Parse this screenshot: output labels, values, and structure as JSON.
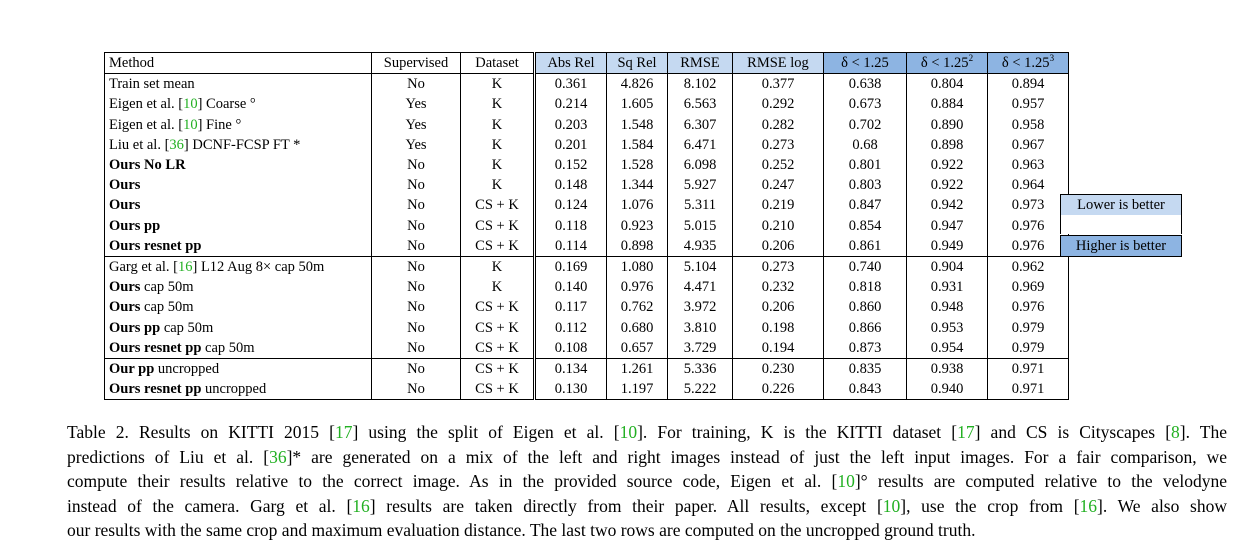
{
  "table": {
    "headers": {
      "method": "Method",
      "supervised": "Supervised",
      "dataset": "Dataset",
      "abs_rel": "Abs Rel",
      "sq_rel": "Sq Rel",
      "rmse": "RMSE",
      "rmse_log": "RMSE log",
      "d1": "δ < 1.25",
      "d2_base": "δ < 1.25",
      "d2_sup": "2",
      "d3_base": "δ < 1.25",
      "d3_sup": "3"
    },
    "rows": [
      {
        "method": "Train set mean",
        "cite": "",
        "method_rest": "",
        "bold_method": false,
        "sup": "No",
        "ds": "K",
        "vals": [
          "0.361",
          "4.826",
          "8.102",
          "0.377",
          "0.638",
          "0.804",
          "0.894"
        ],
        "bold": []
      },
      {
        "method": "Eigen et al. [",
        "cite": "10",
        "method_rest": "] Coarse °",
        "bold_method": false,
        "sup": "Yes",
        "ds": "K",
        "vals": [
          "0.214",
          "1.605",
          "6.563",
          "0.292",
          "0.673",
          "0.884",
          "0.957"
        ],
        "bold": []
      },
      {
        "method": "Eigen et al. [",
        "cite": "10",
        "method_rest": "] Fine °",
        "bold_method": false,
        "sup": "Yes",
        "ds": "K",
        "vals": [
          "0.203",
          "1.548",
          "6.307",
          "0.282",
          "0.702",
          "0.890",
          "0.958"
        ],
        "bold": []
      },
      {
        "method": "Liu et al. [",
        "cite": "36",
        "method_rest": "] DCNF-FCSP FT *",
        "bold_method": false,
        "sup": "Yes",
        "ds": "K",
        "vals": [
          "0.201",
          "1.584",
          "6.471",
          "0.273",
          "0.68",
          "0.898",
          "0.967"
        ],
        "bold": []
      },
      {
        "method": "Ours No LR",
        "cite": "",
        "method_rest": "",
        "bold_method": true,
        "sup": "No",
        "ds": "K",
        "vals": [
          "0.152",
          "1.528",
          "6.098",
          "0.252",
          "0.801",
          "0.922",
          "0.963"
        ],
        "bold": []
      },
      {
        "method": "Ours",
        "cite": "",
        "method_rest": "",
        "bold_method": true,
        "sup": "No",
        "ds": "K",
        "vals": [
          "0.148",
          "1.344",
          "5.927",
          "0.247",
          "0.803",
          "0.922",
          "0.964"
        ],
        "bold": []
      },
      {
        "method": "Ours",
        "cite": "",
        "method_rest": "",
        "bold_method": true,
        "sup": "No",
        "ds": "CS + K",
        "vals": [
          "0.124",
          "1.076",
          "5.311",
          "0.219",
          "0.847",
          "0.942",
          "0.973"
        ],
        "bold": []
      },
      {
        "method": "Ours pp",
        "cite": "",
        "method_rest": "",
        "bold_method": true,
        "sup": "No",
        "ds": "CS + K",
        "vals": [
          "0.118",
          "0.923",
          "5.015",
          "0.210",
          "0.854",
          "0.947",
          "0.976"
        ],
        "bold": [
          6
        ]
      },
      {
        "method": "Ours resnet pp",
        "cite": "",
        "method_rest": "",
        "bold_method": true,
        "sup": "No",
        "ds": "CS + K",
        "vals": [
          "0.114",
          "0.898",
          "4.935",
          "0.206",
          "0.861",
          "0.949",
          "0.976"
        ],
        "bold": [
          0,
          1,
          2,
          3,
          4,
          5,
          6
        ]
      },
      {
        "method": "Garg et al. [",
        "cite": "16",
        "method_rest": "] L12 Aug 8× cap 50m",
        "bold_method": false,
        "sup": "No",
        "ds": "K",
        "vals": [
          "0.169",
          "1.080",
          "5.104",
          "0.273",
          "0.740",
          "0.904",
          "0.962"
        ],
        "bold": [],
        "sep": true
      },
      {
        "method": "Ours",
        "cite": "",
        "method_rest": " cap 50m",
        "bold_method": true,
        "sup": "No",
        "ds": "K",
        "vals": [
          "0.140",
          "0.976",
          "4.471",
          "0.232",
          "0.818",
          "0.931",
          "0.969"
        ],
        "bold": []
      },
      {
        "method": "Ours",
        "cite": "",
        "method_rest": " cap 50m",
        "bold_method": true,
        "sup": "No",
        "ds": "CS + K",
        "vals": [
          "0.117",
          "0.762",
          "3.972",
          "0.206",
          "0.860",
          "0.948",
          "0.976"
        ],
        "bold": []
      },
      {
        "method": "Ours pp",
        "cite": "",
        "method_rest": " cap 50m",
        "bold_method": true,
        "sup": "No",
        "ds": "CS + K",
        "vals": [
          "0.112",
          "0.680",
          "3.810",
          "0.198",
          "0.866",
          "0.953",
          "0.979"
        ],
        "bold": [
          6
        ]
      },
      {
        "method": "Ours resnet pp",
        "cite": "",
        "method_rest": " cap 50m",
        "bold_method": true,
        "sup": "No",
        "ds": "CS + K",
        "vals": [
          "0.108",
          "0.657",
          "3.729",
          "0.194",
          "0.873",
          "0.954",
          "0.979"
        ],
        "bold": [
          0,
          1,
          2,
          3,
          4,
          5,
          6
        ]
      },
      {
        "method": "Our pp",
        "cite": "",
        "method_rest": " uncropped",
        "bold_method": true,
        "sup": "No",
        "ds": "CS + K",
        "vals": [
          "0.134",
          "1.261",
          "5.336",
          "0.230",
          "0.835",
          "0.938",
          "0.971"
        ],
        "bold": [],
        "sep": true
      },
      {
        "method": "Ours resnet pp",
        "cite": "",
        "method_rest": " uncropped",
        "bold_method": true,
        "sup": "No",
        "ds": "CS + K",
        "vals": [
          "0.130",
          "1.197",
          "5.222",
          "0.226",
          "0.843",
          "0.940",
          "0.971"
        ],
        "bold": []
      }
    ]
  },
  "legend": {
    "lower": "Lower is better",
    "higher": "Higher is better"
  },
  "caption": {
    "lines": [
      [
        {
          "t": "Table 2. Results on KITTI 2015 ["
        },
        {
          "t": "17",
          "c": 1
        },
        {
          "t": "] using the split of Eigen et al. ["
        },
        {
          "t": "10",
          "c": 1
        },
        {
          "t": "]. For training, K is the KITTI dataset ["
        },
        {
          "t": "17",
          "c": 1
        },
        {
          "t": "] and CS is Cityscapes ["
        },
        {
          "t": "8",
          "c": 1
        },
        {
          "t": "]. The"
        }
      ],
      [
        {
          "t": "predictions of Liu et al. ["
        },
        {
          "t": "36",
          "c": 1
        },
        {
          "t": "]* are generated on a mix of the left and right images instead of just the left input images. For a fair comparison, we"
        }
      ],
      [
        {
          "t": "compute their results relative to the correct image. As in the provided source code, Eigen et al. ["
        },
        {
          "t": "10",
          "c": 1
        },
        {
          "t": "]° results are computed relative to the velodyne"
        }
      ],
      [
        {
          "t": "instead of the camera. Garg et al. ["
        },
        {
          "t": "16",
          "c": 1
        },
        {
          "t": "] results are taken directly from their paper. All results, except ["
        },
        {
          "t": "10",
          "c": 1
        },
        {
          "t": "], use the crop from ["
        },
        {
          "t": "16",
          "c": 1
        },
        {
          "t": "]. We also show"
        }
      ],
      [
        {
          "t": "our results with the same crop and maximum evaluation distance. The last two rows are computed on the uncropped ground truth."
        }
      ]
    ],
    "link_color": "#22b022"
  }
}
